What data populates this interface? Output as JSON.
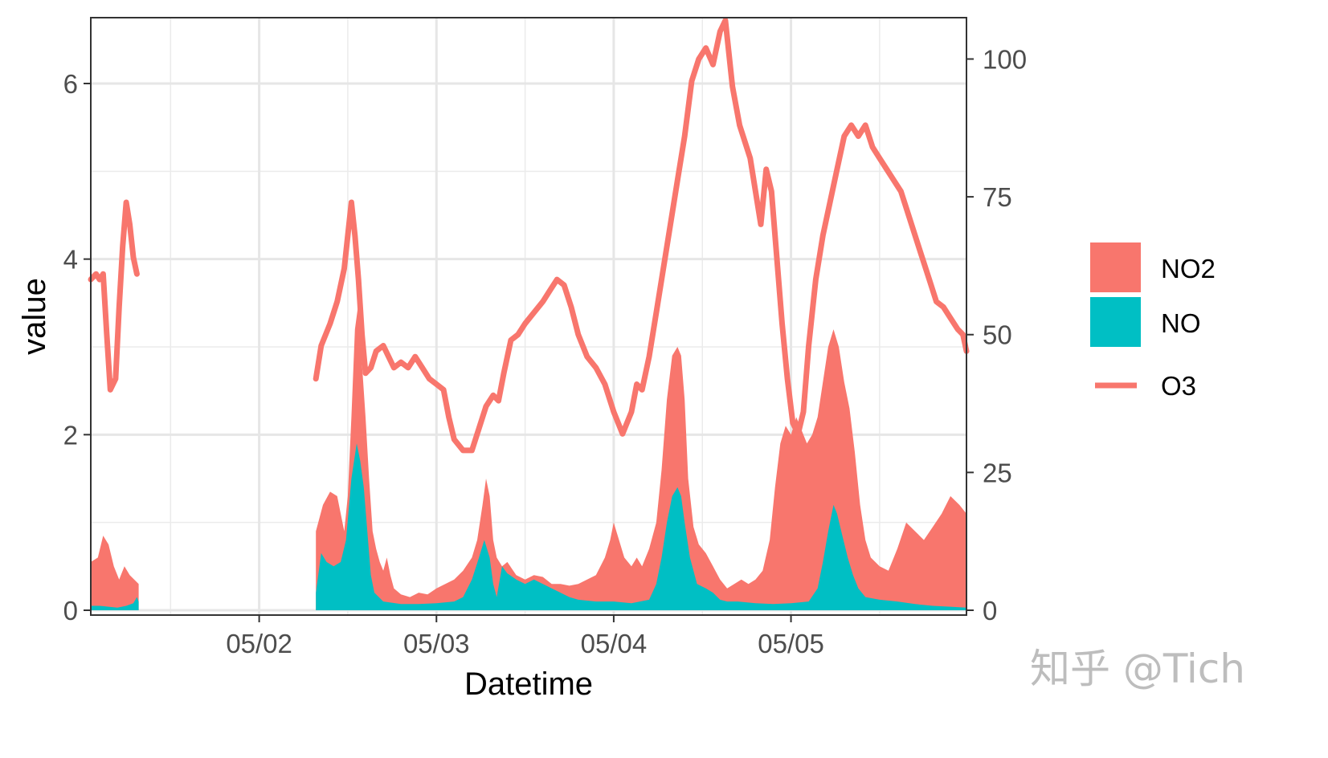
{
  "chart_data": {
    "type": "area",
    "xlabel": "Datetime",
    "ylabel": "value",
    "x_ticks": [
      "05/02",
      "05/03",
      "05/04",
      "05/05"
    ],
    "x_range_days": [
      1.05,
      5.99
    ],
    "ylim": [
      0,
      6.75
    ],
    "y_ticks": [
      0,
      2,
      4,
      6
    ],
    "y2lim": [
      0,
      107.5
    ],
    "y2_ticks": [
      0,
      25,
      50,
      75,
      100
    ],
    "grid": true,
    "legend_position": "right",
    "series": [
      {
        "name": "NO2",
        "kind": "area",
        "axis": "left",
        "color": "#F8766D",
        "points": [
          [
            1.05,
            0.55
          ],
          [
            1.09,
            0.6
          ],
          [
            1.12,
            0.85
          ],
          [
            1.15,
            0.75
          ],
          [
            1.18,
            0.5
          ],
          [
            1.21,
            0.35
          ],
          [
            1.24,
            0.5
          ],
          [
            1.27,
            0.4
          ],
          [
            1.32,
            0.3
          ],
          [
            2.32,
            0.9
          ],
          [
            2.36,
            1.2
          ],
          [
            2.4,
            1.35
          ],
          [
            2.44,
            1.3
          ],
          [
            2.48,
            0.9
          ],
          [
            2.5,
            1.3
          ],
          [
            2.52,
            2.2
          ],
          [
            2.54,
            3.2
          ],
          [
            2.56,
            3.5
          ],
          [
            2.58,
            2.8
          ],
          [
            2.6,
            2.2
          ],
          [
            2.62,
            1.5
          ],
          [
            2.64,
            0.9
          ],
          [
            2.66,
            0.7
          ],
          [
            2.68,
            0.55
          ],
          [
            2.7,
            0.45
          ],
          [
            2.72,
            0.6
          ],
          [
            2.74,
            0.4
          ],
          [
            2.76,
            0.25
          ],
          [
            2.8,
            0.18
          ],
          [
            2.85,
            0.15
          ],
          [
            2.9,
            0.2
          ],
          [
            2.95,
            0.18
          ],
          [
            3.0,
            0.25
          ],
          [
            3.05,
            0.3
          ],
          [
            3.1,
            0.35
          ],
          [
            3.15,
            0.45
          ],
          [
            3.2,
            0.6
          ],
          [
            3.23,
            0.8
          ],
          [
            3.26,
            1.2
          ],
          [
            3.28,
            1.5
          ],
          [
            3.3,
            1.3
          ],
          [
            3.32,
            0.8
          ],
          [
            3.34,
            0.6
          ],
          [
            3.37,
            0.5
          ],
          [
            3.4,
            0.55
          ],
          [
            3.45,
            0.4
          ],
          [
            3.5,
            0.35
          ],
          [
            3.55,
            0.4
          ],
          [
            3.6,
            0.38
          ],
          [
            3.65,
            0.3
          ],
          [
            3.7,
            0.3
          ],
          [
            3.75,
            0.28
          ],
          [
            3.8,
            0.3
          ],
          [
            3.85,
            0.35
          ],
          [
            3.9,
            0.4
          ],
          [
            3.95,
            0.6
          ],
          [
            3.98,
            0.8
          ],
          [
            4.0,
            1.0
          ],
          [
            4.03,
            0.8
          ],
          [
            4.06,
            0.6
          ],
          [
            4.1,
            0.5
          ],
          [
            4.13,
            0.6
          ],
          [
            4.16,
            0.5
          ],
          [
            4.2,
            0.7
          ],
          [
            4.24,
            1.0
          ],
          [
            4.27,
            1.6
          ],
          [
            4.3,
            2.4
          ],
          [
            4.33,
            2.9
          ],
          [
            4.36,
            3.0
          ],
          [
            4.38,
            2.9
          ],
          [
            4.4,
            2.4
          ],
          [
            4.42,
            1.5
          ],
          [
            4.45,
            0.95
          ],
          [
            4.48,
            0.75
          ],
          [
            4.52,
            0.65
          ],
          [
            4.56,
            0.5
          ],
          [
            4.6,
            0.35
          ],
          [
            4.64,
            0.25
          ],
          [
            4.68,
            0.3
          ],
          [
            4.72,
            0.35
          ],
          [
            4.76,
            0.3
          ],
          [
            4.8,
            0.35
          ],
          [
            4.84,
            0.45
          ],
          [
            4.88,
            0.8
          ],
          [
            4.91,
            1.4
          ],
          [
            4.94,
            1.9
          ],
          [
            4.97,
            2.1
          ],
          [
            5.0,
            2.0
          ],
          [
            5.03,
            2.2
          ],
          [
            5.06,
            2.05
          ],
          [
            5.09,
            1.9
          ],
          [
            5.12,
            2.0
          ],
          [
            5.15,
            2.2
          ],
          [
            5.18,
            2.6
          ],
          [
            5.21,
            3.0
          ],
          [
            5.24,
            3.2
          ],
          [
            5.27,
            3.0
          ],
          [
            5.3,
            2.6
          ],
          [
            5.33,
            2.3
          ],
          [
            5.36,
            1.8
          ],
          [
            5.39,
            1.2
          ],
          [
            5.42,
            0.8
          ],
          [
            5.45,
            0.6
          ],
          [
            5.5,
            0.5
          ],
          [
            5.55,
            0.45
          ],
          [
            5.6,
            0.7
          ],
          [
            5.65,
            1.0
          ],
          [
            5.7,
            0.9
          ],
          [
            5.75,
            0.8
          ],
          [
            5.8,
            0.95
          ],
          [
            5.85,
            1.1
          ],
          [
            5.9,
            1.3
          ],
          [
            5.95,
            1.2
          ],
          [
            5.99,
            1.1
          ]
        ]
      },
      {
        "name": "NO",
        "kind": "area",
        "axis": "left",
        "color": "#00BFC4",
        "points": [
          [
            1.05,
            0.05
          ],
          [
            1.1,
            0.05
          ],
          [
            1.15,
            0.04
          ],
          [
            1.2,
            0.03
          ],
          [
            1.25,
            0.05
          ],
          [
            1.29,
            0.08
          ],
          [
            1.31,
            0.15
          ],
          [
            1.32,
            0.1
          ],
          [
            2.32,
            0.2
          ],
          [
            2.35,
            0.65
          ],
          [
            2.38,
            0.55
          ],
          [
            2.42,
            0.5
          ],
          [
            2.46,
            0.55
          ],
          [
            2.49,
            0.8
          ],
          [
            2.52,
            1.5
          ],
          [
            2.55,
            1.9
          ],
          [
            2.57,
            1.7
          ],
          [
            2.59,
            1.4
          ],
          [
            2.61,
            0.9
          ],
          [
            2.63,
            0.4
          ],
          [
            2.65,
            0.2
          ],
          [
            2.7,
            0.1
          ],
          [
            2.8,
            0.07
          ],
          [
            2.9,
            0.07
          ],
          [
            3.0,
            0.08
          ],
          [
            3.1,
            0.1
          ],
          [
            3.15,
            0.15
          ],
          [
            3.2,
            0.35
          ],
          [
            3.24,
            0.6
          ],
          [
            3.27,
            0.8
          ],
          [
            3.3,
            0.6
          ],
          [
            3.32,
            0.3
          ],
          [
            3.34,
            0.15
          ],
          [
            3.37,
            0.5
          ],
          [
            3.4,
            0.42
          ],
          [
            3.45,
            0.35
          ],
          [
            3.5,
            0.3
          ],
          [
            3.55,
            0.35
          ],
          [
            3.6,
            0.3
          ],
          [
            3.65,
            0.25
          ],
          [
            3.7,
            0.2
          ],
          [
            3.75,
            0.15
          ],
          [
            3.8,
            0.12
          ],
          [
            3.9,
            0.1
          ],
          [
            4.0,
            0.1
          ],
          [
            4.1,
            0.08
          ],
          [
            4.2,
            0.12
          ],
          [
            4.24,
            0.3
          ],
          [
            4.27,
            0.6
          ],
          [
            4.3,
            1.0
          ],
          [
            4.33,
            1.3
          ],
          [
            4.36,
            1.4
          ],
          [
            4.38,
            1.3
          ],
          [
            4.4,
            1.0
          ],
          [
            4.43,
            0.6
          ],
          [
            4.47,
            0.3
          ],
          [
            4.52,
            0.25
          ],
          [
            4.56,
            0.2
          ],
          [
            4.6,
            0.12
          ],
          [
            4.64,
            0.1
          ],
          [
            4.7,
            0.1
          ],
          [
            4.8,
            0.08
          ],
          [
            4.9,
            0.07
          ],
          [
            5.0,
            0.08
          ],
          [
            5.1,
            0.1
          ],
          [
            5.15,
            0.25
          ],
          [
            5.18,
            0.55
          ],
          [
            5.21,
            0.9
          ],
          [
            5.24,
            1.2
          ],
          [
            5.26,
            1.1
          ],
          [
            5.29,
            0.85
          ],
          [
            5.32,
            0.6
          ],
          [
            5.35,
            0.4
          ],
          [
            5.38,
            0.25
          ],
          [
            5.42,
            0.15
          ],
          [
            5.5,
            0.12
          ],
          [
            5.6,
            0.1
          ],
          [
            5.7,
            0.07
          ],
          [
            5.8,
            0.05
          ],
          [
            5.9,
            0.04
          ],
          [
            5.99,
            0.03
          ]
        ]
      },
      {
        "name": "O3",
        "kind": "line",
        "axis": "right",
        "color": "#F8766D",
        "points": [
          [
            1.05,
            60
          ],
          [
            1.08,
            61
          ],
          [
            1.1,
            60
          ],
          [
            1.12,
            61
          ],
          [
            1.14,
            50
          ],
          [
            1.16,
            40
          ],
          [
            1.19,
            42
          ],
          [
            1.21,
            55
          ],
          [
            1.23,
            66
          ],
          [
            1.25,
            74
          ],
          [
            1.27,
            70
          ],
          [
            1.29,
            64
          ],
          [
            1.31,
            61
          ],
          [
            2.32,
            42
          ],
          [
            2.35,
            48
          ],
          [
            2.4,
            52
          ],
          [
            2.44,
            56
          ],
          [
            2.48,
            62
          ],
          [
            2.5,
            68
          ],
          [
            2.52,
            74
          ],
          [
            2.54,
            68
          ],
          [
            2.56,
            60
          ],
          [
            2.58,
            50
          ],
          [
            2.6,
            43
          ],
          [
            2.63,
            44
          ],
          [
            2.66,
            47
          ],
          [
            2.7,
            48
          ],
          [
            2.73,
            46
          ],
          [
            2.76,
            44
          ],
          [
            2.8,
            45
          ],
          [
            2.84,
            44
          ],
          [
            2.88,
            46
          ],
          [
            2.92,
            44
          ],
          [
            2.96,
            42
          ],
          [
            3.0,
            41
          ],
          [
            3.04,
            40
          ],
          [
            3.07,
            35
          ],
          [
            3.1,
            31
          ],
          [
            3.15,
            29
          ],
          [
            3.2,
            29
          ],
          [
            3.24,
            33
          ],
          [
            3.28,
            37
          ],
          [
            3.32,
            39
          ],
          [
            3.35,
            38
          ],
          [
            3.38,
            43
          ],
          [
            3.42,
            49
          ],
          [
            3.46,
            50
          ],
          [
            3.5,
            52
          ],
          [
            3.55,
            54
          ],
          [
            3.6,
            56
          ],
          [
            3.64,
            58
          ],
          [
            3.68,
            60
          ],
          [
            3.72,
            59
          ],
          [
            3.76,
            55
          ],
          [
            3.8,
            50
          ],
          [
            3.85,
            46
          ],
          [
            3.9,
            44
          ],
          [
            3.95,
            41
          ],
          [
            4.0,
            36
          ],
          [
            4.05,
            32
          ],
          [
            4.1,
            36
          ],
          [
            4.13,
            41
          ],
          [
            4.16,
            40
          ],
          [
            4.2,
            46
          ],
          [
            4.24,
            54
          ],
          [
            4.28,
            62
          ],
          [
            4.32,
            70
          ],
          [
            4.36,
            78
          ],
          [
            4.4,
            86
          ],
          [
            4.44,
            96
          ],
          [
            4.48,
            100
          ],
          [
            4.52,
            102
          ],
          [
            4.56,
            99
          ],
          [
            4.6,
            105
          ],
          [
            4.63,
            107
          ],
          [
            4.67,
            95
          ],
          [
            4.71,
            88
          ],
          [
            4.74,
            85
          ],
          [
            4.77,
            82
          ],
          [
            4.8,
            76
          ],
          [
            4.83,
            70
          ],
          [
            4.86,
            80
          ],
          [
            4.89,
            76
          ],
          [
            4.92,
            64
          ],
          [
            4.95,
            52
          ],
          [
            4.98,
            42
          ],
          [
            5.01,
            34
          ],
          [
            5.04,
            32
          ],
          [
            5.07,
            36
          ],
          [
            5.1,
            48
          ],
          [
            5.14,
            60
          ],
          [
            5.18,
            68
          ],
          [
            5.22,
            74
          ],
          [
            5.26,
            80
          ],
          [
            5.3,
            86
          ],
          [
            5.34,
            88
          ],
          [
            5.38,
            86
          ],
          [
            5.42,
            88
          ],
          [
            5.46,
            84
          ],
          [
            5.5,
            82
          ],
          [
            5.54,
            80
          ],
          [
            5.58,
            78
          ],
          [
            5.62,
            76
          ],
          [
            5.66,
            72
          ],
          [
            5.7,
            68
          ],
          [
            5.74,
            64
          ],
          [
            5.78,
            60
          ],
          [
            5.82,
            56
          ],
          [
            5.86,
            55
          ],
          [
            5.9,
            53
          ],
          [
            5.94,
            51
          ],
          [
            5.97,
            50
          ],
          [
            5.99,
            47
          ]
        ]
      }
    ]
  },
  "watermark": "知乎 @Tich"
}
